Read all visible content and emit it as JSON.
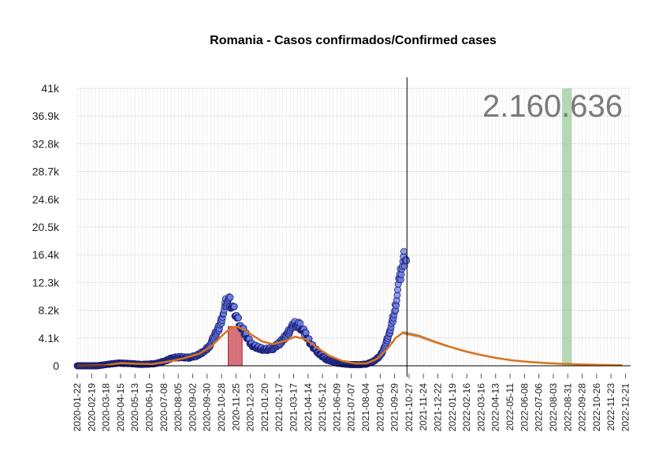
{
  "chart_data": {
    "type": "scatter",
    "title": "Romania - Casos confirmados/Confirmed cases",
    "annotation_total": "2.160.636",
    "ylim": [
      0,
      41000
    ],
    "y_ticks": [
      "0",
      "4.1k",
      "8.2k",
      "12.3k",
      "16.4k",
      "20.5k",
      "24.6k",
      "28.7k",
      "32.8k",
      "36.9k",
      "41k"
    ],
    "x_start": "2020-01-22",
    "x_end": "2022-12-31",
    "x_ticks": [
      "2020-01-22",
      "2020-02-19",
      "2020-03-18",
      "2020-04-15",
      "2020-05-13",
      "2020-06-10",
      "2020-07-08",
      "2020-08-05",
      "2020-09-02",
      "2020-09-30",
      "2020-10-28",
      "2020-11-25",
      "2020-12-23",
      "2021-01-20",
      "2021-02-17",
      "2021-03-17",
      "2021-04-14",
      "2021-05-12",
      "2021-06-09",
      "2021-07-07",
      "2021-08-04",
      "2021-09-01",
      "2021-09-29",
      "2021-10-27",
      "2021-11-24",
      "2021-12-22",
      "2022-01-19",
      "2022-02-16",
      "2022-03-16",
      "2022-04-13",
      "2022-05-11",
      "2022-06-08",
      "2022-07-06",
      "2022-08-03",
      "2022-08-31",
      "2022-09-28",
      "2022-10-26",
      "2022-11-23",
      "2022-12-21"
    ],
    "today_line": "2021-10-23",
    "highlight_red": {
      "start": "2020-11-10",
      "end": "2020-12-07",
      "value": 5800
    },
    "highlight_green": {
      "start": "2022-08-20",
      "end": "2022-09-08"
    },
    "observed_series": [
      [
        "2020-01-22",
        0
      ],
      [
        "2020-03-01",
        5
      ],
      [
        "2020-03-20",
        200
      ],
      [
        "2020-04-10",
        400
      ],
      [
        "2020-05-01",
        350
      ],
      [
        "2020-05-25",
        200
      ],
      [
        "2020-06-20",
        300
      ],
      [
        "2020-07-10",
        700
      ],
      [
        "2020-07-25",
        1200
      ],
      [
        "2020-08-10",
        1300
      ],
      [
        "2020-08-25",
        1200
      ],
      [
        "2020-09-10",
        1500
      ],
      [
        "2020-09-25",
        2200
      ],
      [
        "2020-10-05",
        3000
      ],
      [
        "2020-10-15",
        4500
      ],
      [
        "2020-10-25",
        6000
      ],
      [
        "2020-11-01",
        8000
      ],
      [
        "2020-11-07",
        9800
      ],
      [
        "2020-11-14",
        9500
      ],
      [
        "2020-11-20",
        8500
      ],
      [
        "2020-11-27",
        7200
      ],
      [
        "2020-12-05",
        5800
      ],
      [
        "2020-12-15",
        4500
      ],
      [
        "2020-12-25",
        3200
      ],
      [
        "2021-01-05",
        2700
      ],
      [
        "2021-01-20",
        2400
      ],
      [
        "2021-02-05",
        2600
      ],
      [
        "2021-02-20",
        3500
      ],
      [
        "2021-03-05",
        4800
      ],
      [
        "2021-03-15",
        5800
      ],
      [
        "2021-03-22",
        6300
      ],
      [
        "2021-03-30",
        5900
      ],
      [
        "2021-04-08",
        4800
      ],
      [
        "2021-04-20",
        3200
      ],
      [
        "2021-05-05",
        1800
      ],
      [
        "2021-05-20",
        900
      ],
      [
        "2021-06-10",
        400
      ],
      [
        "2021-07-01",
        200
      ],
      [
        "2021-07-20",
        150
      ],
      [
        "2021-08-05",
        250
      ],
      [
        "2021-08-20",
        700
      ],
      [
        "2021-09-01",
        1500
      ],
      [
        "2021-09-10",
        2800
      ],
      [
        "2021-09-20",
        5200
      ],
      [
        "2021-09-30",
        8500
      ],
      [
        "2021-10-08",
        12500
      ],
      [
        "2021-10-14",
        15000
      ],
      [
        "2021-10-19",
        16500
      ],
      [
        "2021-10-22",
        15500
      ]
    ],
    "fit_series": [
      [
        "2020-01-22",
        0
      ],
      [
        "2020-03-15",
        50
      ],
      [
        "2020-04-15",
        400
      ],
      [
        "2020-05-15",
        300
      ],
      [
        "2020-06-15",
        250
      ],
      [
        "2020-07-15",
        600
      ],
      [
        "2020-08-15",
        1100
      ],
      [
        "2020-09-15",
        1800
      ],
      [
        "2020-10-10",
        3000
      ],
      [
        "2020-10-28",
        4400
      ],
      [
        "2020-11-15",
        5600
      ],
      [
        "2020-11-25",
        5800
      ],
      [
        "2020-12-10",
        5400
      ],
      [
        "2020-12-25",
        4600
      ],
      [
        "2021-01-15",
        3600
      ],
      [
        "2021-02-05",
        3200
      ],
      [
        "2021-03-01",
        3700
      ],
      [
        "2021-03-20",
        4300
      ],
      [
        "2021-04-10",
        3900
      ],
      [
        "2021-05-01",
        2700
      ],
      [
        "2021-05-25",
        1500
      ],
      [
        "2021-06-20",
        700
      ],
      [
        "2021-07-15",
        350
      ],
      [
        "2021-08-05",
        350
      ],
      [
        "2021-08-25",
        1000
      ],
      [
        "2021-09-15",
        2500
      ],
      [
        "2021-10-01",
        4100
      ],
      [
        "2021-10-15",
        4900
      ],
      [
        "2021-10-27",
        4700
      ],
      [
        "2021-11-15",
        4400
      ],
      [
        "2021-12-10",
        3700
      ],
      [
        "2022-01-10",
        2900
      ],
      [
        "2022-02-10",
        2200
      ],
      [
        "2022-03-15",
        1600
      ],
      [
        "2022-04-15",
        1150
      ],
      [
        "2022-05-15",
        800
      ],
      [
        "2022-06-15",
        580
      ],
      [
        "2022-07-15",
        420
      ],
      [
        "2022-08-15",
        300
      ],
      [
        "2022-09-15",
        220
      ],
      [
        "2022-10-15",
        160
      ],
      [
        "2022-11-15",
        110
      ],
      [
        "2022-12-15",
        80
      ]
    ],
    "colors": {
      "points_fill": "#6b7fe0",
      "points_stroke": "#1c1f7a",
      "fit_line": "#d9731a",
      "red_band": "#d0505a",
      "green_band": "#9ccb9c",
      "grid": "#e5e5e5",
      "band_uncertainty": "#a8a8a8"
    }
  }
}
